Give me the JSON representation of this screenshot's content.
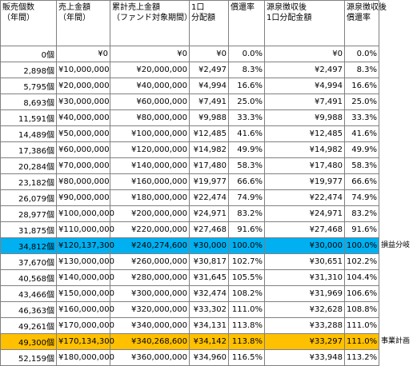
{
  "table": {
    "header": [
      [
        "販売個数",
        "（年間）"
      ],
      [
        "売上金額",
        "（年間）"
      ],
      [
        "累計売上金額",
        "（ファンド対象期間）"
      ],
      [
        "1口",
        "分配額"
      ],
      [
        "償還率"
      ],
      [
        "源泉徴収後",
        "1口分配金額"
      ],
      [
        "源泉徴収後",
        "償還率"
      ]
    ],
    "rows": [
      {
        "cells": [
          "0個",
          "¥0",
          "¥0",
          "¥0",
          "0.0%",
          "¥0",
          "0.0%"
        ]
      },
      {
        "cells": [
          "2,898個",
          "¥10,000,000",
          "¥20,000,000",
          "¥2,497",
          "8.3%",
          "¥2,497",
          "8.3%"
        ]
      },
      {
        "cells": [
          "5,795個",
          "¥20,000,000",
          "¥40,000,000",
          "¥4,994",
          "16.6%",
          "¥4,994",
          "16.6%"
        ]
      },
      {
        "cells": [
          "8,693個",
          "¥30,000,000",
          "¥60,000,000",
          "¥7,491",
          "25.0%",
          "¥7,491",
          "25.0%"
        ]
      },
      {
        "cells": [
          "11,591個",
          "¥40,000,000",
          "¥80,000,000",
          "¥9,988",
          "33.3%",
          "¥9,988",
          "33.3%"
        ]
      },
      {
        "cells": [
          "14,489個",
          "¥50,000,000",
          "¥100,000,000",
          "¥12,485",
          "41.6%",
          "¥12,485",
          "41.6%"
        ]
      },
      {
        "cells": [
          "17,386個",
          "¥60,000,000",
          "¥120,000,000",
          "¥14,982",
          "49.9%",
          "¥14,982",
          "49.9%"
        ]
      },
      {
        "cells": [
          "20,284個",
          "¥70,000,000",
          "¥140,000,000",
          "¥17,480",
          "58.3%",
          "¥17,480",
          "58.3%"
        ]
      },
      {
        "cells": [
          "23,182個",
          "¥80,000,000",
          "¥160,000,000",
          "¥19,977",
          "66.6%",
          "¥19,977",
          "66.6%"
        ]
      },
      {
        "cells": [
          "26,079個",
          "¥90,000,000",
          "¥180,000,000",
          "¥22,474",
          "74.9%",
          "¥22,474",
          "74.9%"
        ]
      },
      {
        "cells": [
          "28,977個",
          "¥100,000,000",
          "¥200,000,000",
          "¥24,971",
          "83.2%",
          "¥24,971",
          "83.2%"
        ]
      },
      {
        "cells": [
          "31,875個",
          "¥110,000,000",
          "¥220,000,000",
          "¥27,468",
          "91.6%",
          "¥27,468",
          "91.6%"
        ]
      },
      {
        "cells": [
          "34,812個",
          "¥120,137,300",
          "¥240,274,600",
          "¥30,000",
          "100.0%",
          "¥30,000",
          "100.0%"
        ],
        "note": "損益分岐",
        "color": "#00b0f0"
      },
      {
        "cells": [
          "37,670個",
          "¥130,000,000",
          "¥260,000,000",
          "¥30,817",
          "102.7%",
          "¥30,651",
          "102.2%"
        ]
      },
      {
        "cells": [
          "40,568個",
          "¥140,000,000",
          "¥280,000,000",
          "¥31,645",
          "105.5%",
          "¥31,310",
          "104.4%"
        ]
      },
      {
        "cells": [
          "43,466個",
          "¥150,000,000",
          "¥300,000,000",
          "¥32,474",
          "108.2%",
          "¥31,969",
          "106.6%"
        ]
      },
      {
        "cells": [
          "46,363個",
          "¥160,000,000",
          "¥320,000,000",
          "¥33,302",
          "111.0%",
          "¥32,628",
          "108.8%"
        ]
      },
      {
        "cells": [
          "49,261個",
          "¥170,000,000",
          "¥340,000,000",
          "¥34,131",
          "113.8%",
          "¥33,288",
          "111.0%"
        ]
      },
      {
        "cells": [
          "49,300個",
          "¥170,134,300",
          "¥340,268,600",
          "¥34,142",
          "113.8%",
          "¥33,297",
          "111.0%"
        ],
        "note": "事業計画",
        "color": "#ffc000"
      },
      {
        "cells": [
          "52,159個",
          "¥180,000,000",
          "¥360,000,000",
          "¥34,960",
          "116.5%",
          "¥33,948",
          "113.2%"
        ]
      }
    ]
  }
}
